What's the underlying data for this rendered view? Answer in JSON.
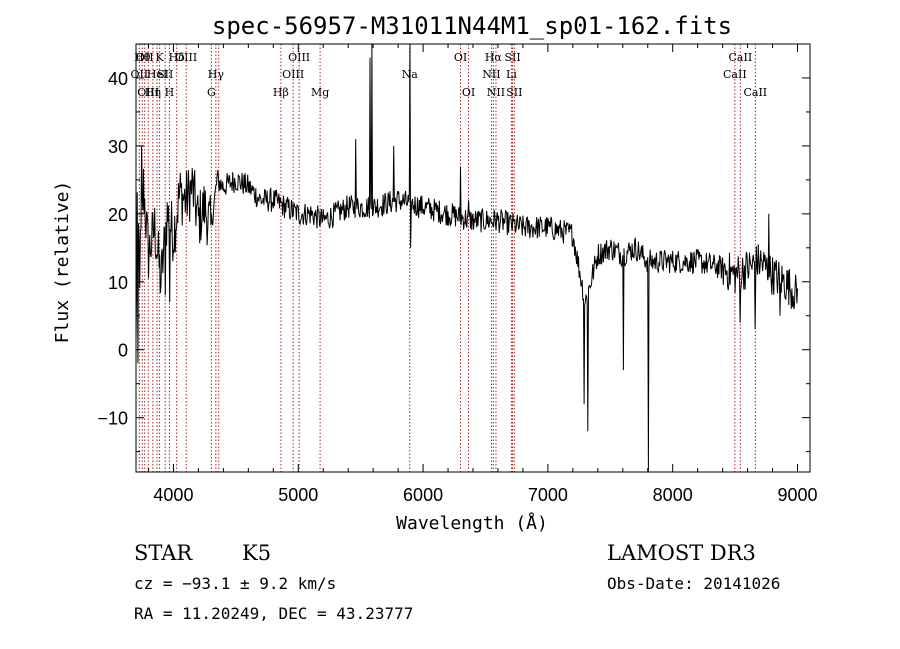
{
  "chart_data": {
    "type": "line",
    "title": "spec-56957-M31011N44M1_sp01-162.fits",
    "xlabel": "Wavelength (Å)",
    "ylabel": "Flux (relative)",
    "xlim": [
      3700,
      9100
    ],
    "ylim": [
      -18,
      45
    ],
    "xticks": [
      4000,
      5000,
      6000,
      7000,
      8000,
      9000
    ],
    "yticks": [
      -10,
      0,
      10,
      20,
      30,
      40
    ],
    "grid": false,
    "color": "#000000",
    "line_marker_color": "#b22222",
    "spectrum_keypoints": [
      [
        3700,
        0
      ],
      [
        3710,
        22
      ],
      [
        3730,
        12
      ],
      [
        3760,
        24
      ],
      [
        3800,
        14
      ],
      [
        3850,
        18
      ],
      [
        3900,
        10
      ],
      [
        3950,
        20
      ],
      [
        4000,
        17
      ],
      [
        4050,
        23
      ],
      [
        4100,
        22
      ],
      [
        4150,
        24
      ],
      [
        4200,
        19
      ],
      [
        4250,
        21
      ],
      [
        4300,
        18
      ],
      [
        4350,
        25
      ],
      [
        4400,
        24
      ],
      [
        4500,
        25
      ],
      [
        4600,
        24
      ],
      [
        4700,
        22
      ],
      [
        4800,
        22
      ],
      [
        4900,
        21
      ],
      [
        5000,
        20
      ],
      [
        5100,
        20
      ],
      [
        5200,
        19
      ],
      [
        5300,
        20
      ],
      [
        5400,
        21
      ],
      [
        5600,
        21
      ],
      [
        5800,
        22
      ],
      [
        6000,
        21
      ],
      [
        6200,
        20
      ],
      [
        6400,
        19
      ],
      [
        6600,
        19
      ],
      [
        6800,
        18
      ],
      [
        7000,
        18
      ],
      [
        7200,
        17
      ],
      [
        7300,
        7
      ],
      [
        7400,
        14
      ],
      [
        7500,
        15
      ],
      [
        7600,
        14
      ],
      [
        7700,
        15
      ],
      [
        7800,
        13
      ],
      [
        7900,
        13
      ],
      [
        8000,
        13
      ],
      [
        8200,
        13
      ],
      [
        8400,
        12
      ],
      [
        8500,
        11
      ],
      [
        8600,
        12
      ],
      [
        8700,
        13
      ],
      [
        8800,
        11
      ],
      [
        8900,
        10
      ],
      [
        9000,
        8
      ]
    ],
    "spikes": [
      [
        3715,
        -2
      ],
      [
        3745,
        30
      ],
      [
        3935,
        8
      ],
      [
        3968,
        7
      ],
      [
        5460,
        31
      ],
      [
        5577,
        43
      ],
      [
        5590,
        45
      ],
      [
        5765,
        30
      ],
      [
        5893,
        45
      ],
      [
        5900,
        15
      ],
      [
        6300,
        27
      ],
      [
        6363,
        22
      ],
      [
        7290,
        -8
      ],
      [
        7320,
        -12
      ],
      [
        7605,
        -3
      ],
      [
        7805,
        -18
      ],
      [
        8542,
        4
      ],
      [
        8662,
        3
      ],
      [
        8770,
        20
      ],
      [
        8860,
        5
      ]
    ],
    "lines": [
      {
        "wavelength": 3727,
        "row": 2,
        "label": "OII"
      },
      {
        "wavelength": 3750,
        "row": 1,
        "label": "Hθ"
      },
      {
        "wavelength": 3770,
        "row": 1,
        "label": "OII"
      },
      {
        "wavelength": 3798,
        "row": 3,
        "label": "OIII"
      },
      {
        "wavelength": 3835,
        "row": 3,
        "label": "Hη"
      },
      {
        "wavelength": 3869,
        "row": 2,
        "label": "HeI"
      },
      {
        "wavelength": 3889,
        "row": 1,
        "label": "K"
      },
      {
        "wavelength": 3934,
        "row": 2,
        "label": "SII"
      },
      {
        "wavelength": 3968,
        "row": 3,
        "label": "H"
      },
      {
        "wavelength": 4026,
        "row": 1,
        "label": "Hδ"
      },
      {
        "wavelength": 4102,
        "row": 1,
        "label": "OIII"
      },
      {
        "wavelength": 4304,
        "row": 3,
        "label": "G"
      },
      {
        "wavelength": 4340,
        "row": 2,
        "label": "Hγ"
      },
      {
        "wavelength": 4363,
        "row": 1,
        "label": ""
      },
      {
        "wavelength": 4861,
        "row": 3,
        "label": "Hβ"
      },
      {
        "wavelength": 4959,
        "row": 2,
        "label": "OIII"
      },
      {
        "wavelength": 5007,
        "row": 1,
        "label": "OIII"
      },
      {
        "wavelength": 5175,
        "row": 3,
        "label": "Mg"
      },
      {
        "wavelength": 5893,
        "row": 2,
        "label": "Na"
      },
      {
        "wavelength": 6300,
        "row": 1,
        "label": "OI"
      },
      {
        "wavelength": 6364,
        "row": 3,
        "label": "OI"
      },
      {
        "wavelength": 6548,
        "row": 2,
        "label": "NII"
      },
      {
        "wavelength": 6563,
        "row": 1,
        "label": "Hα"
      },
      {
        "wavelength": 6584,
        "row": 3,
        "label": "NII"
      },
      {
        "wavelength": 6708,
        "row": 2,
        "label": "Li"
      },
      {
        "wavelength": 6717,
        "row": 1,
        "label": "SII"
      },
      {
        "wavelength": 6731,
        "row": 3,
        "label": "SII"
      },
      {
        "wavelength": 8498,
        "row": 2,
        "label": "CaII"
      },
      {
        "wavelength": 8542,
        "row": 1,
        "label": "CaII"
      },
      {
        "wavelength": 8662,
        "row": 3,
        "label": "CaII"
      }
    ]
  },
  "info": {
    "class": "STAR",
    "subclass": "K5",
    "survey": "LAMOST DR3",
    "velocity": "cz = −93.1 ± 9.2 km/s",
    "obs_date": "Obs-Date: 20141026",
    "coords": "RA =  11.20249, DEC =  43.23777"
  }
}
